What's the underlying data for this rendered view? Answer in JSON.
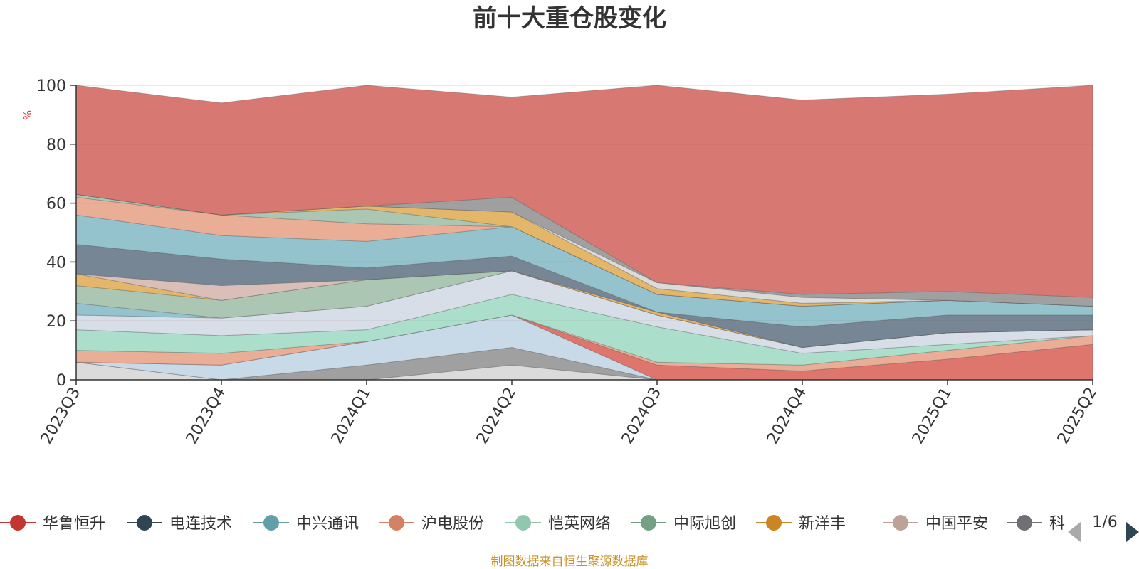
{
  "chart_data": {
    "type": "area",
    "stacked": true,
    "title": "前十大重仓股变化",
    "ylabel": "%",
    "ylim": [
      0,
      100
    ],
    "yticks": [
      0,
      20,
      40,
      60,
      80,
      100
    ],
    "grid": true,
    "categories": [
      "2023Q3",
      "2023Q4",
      "2024Q1",
      "2024Q2",
      "2024Q3",
      "2024Q4",
      "2025Q1",
      "2025Q2"
    ],
    "series": [
      {
        "name": "",
        "color": "#d9d9d9",
        "values": [
          6,
          0,
          0,
          5,
          0,
          0,
          0,
          0
        ]
      },
      {
        "name": "",
        "color": "#9b9b9b",
        "values": [
          0,
          0,
          5,
          6,
          0,
          0,
          0,
          0
        ]
      },
      {
        "name": "",
        "color": "#c5d7e6",
        "values": [
          0,
          5,
          8,
          11,
          0,
          0,
          0,
          0
        ]
      },
      {
        "name": "",
        "color": "#dd6f65",
        "values": [
          0,
          0,
          0,
          0,
          5,
          3,
          7,
          12
        ]
      },
      {
        "name": "",
        "color": "#e9a990",
        "values": [
          4,
          4,
          0,
          0,
          1,
          2,
          3,
          3
        ]
      },
      {
        "name": "",
        "color": "#a6dcc8",
        "values": [
          7,
          6,
          4,
          7,
          12,
          4,
          2,
          0
        ]
      },
      {
        "name": "",
        "color": "#d6dce6",
        "values": [
          5,
          6,
          8,
          8,
          4,
          2,
          4,
          2
        ]
      },
      {
        "name": "",
        "color": "#8ec0ca",
        "values": [
          4,
          0,
          0,
          0,
          0,
          0,
          0,
          0
        ]
      },
      {
        "name": "",
        "color": "#a7c4b0",
        "values": [
          6,
          6,
          9,
          0,
          0,
          0,
          0,
          0
        ]
      },
      {
        "name": "",
        "color": "#e1b262",
        "values": [
          4,
          0,
          0,
          0,
          1,
          0,
          0,
          0
        ]
      },
      {
        "name": "",
        "color": "#d7bcb3",
        "values": [
          0,
          5,
          0,
          0,
          0,
          0,
          0,
          0
        ]
      },
      {
        "name": "",
        "color": "#6f7f8e",
        "values": [
          10,
          9,
          4,
          5,
          0,
          7,
          6,
          5
        ]
      },
      {
        "name": "",
        "color": "#8ec0ca",
        "values": [
          10,
          8,
          9,
          10,
          6,
          7,
          5,
          3
        ]
      },
      {
        "name": "",
        "color": "#e9a990",
        "values": [
          6,
          7,
          6,
          0,
          0,
          0,
          0,
          0
        ]
      },
      {
        "name": "",
        "color": "#a7c4b0",
        "values": [
          1,
          0,
          5,
          0,
          0,
          0,
          0,
          0
        ]
      },
      {
        "name": "",
        "color": "#e1b262",
        "values": [
          0,
          0,
          1,
          5,
          2,
          1,
          0,
          0
        ]
      },
      {
        "name": "",
        "color": "#d9d9d9",
        "values": [
          0,
          0,
          0,
          0,
          2,
          2,
          0,
          0
        ]
      },
      {
        "name": "",
        "color": "#9b9b9b",
        "values": [
          0,
          0,
          0,
          5,
          0,
          1,
          3,
          3
        ]
      },
      {
        "name": "",
        "color": "#d6716c",
        "values": [
          37,
          38,
          41,
          34,
          67,
          66,
          67,
          72
        ]
      }
    ]
  },
  "legend": {
    "items": [
      {
        "label": "华鲁恒升",
        "color": "#c23531"
      },
      {
        "label": "电连技术",
        "color": "#2f4554"
      },
      {
        "label": "中兴通讯",
        "color": "#61a0a8"
      },
      {
        "label": "沪电股份",
        "color": "#d48265"
      },
      {
        "label": "恺英网络",
        "color": "#91c7ae"
      },
      {
        "label": "中际旭创",
        "color": "#749f83"
      },
      {
        "label": "新洋丰",
        "color": "#ca8622"
      },
      {
        "label": "中国平安",
        "color": "#bda29a"
      },
      {
        "label": "科",
        "color": "#6e7074"
      }
    ],
    "page": "1/6",
    "prev_icon": "triangle-left-icon",
    "next_icon": "triangle-right-icon"
  },
  "source": "制图数据来自恒生聚源数据库"
}
